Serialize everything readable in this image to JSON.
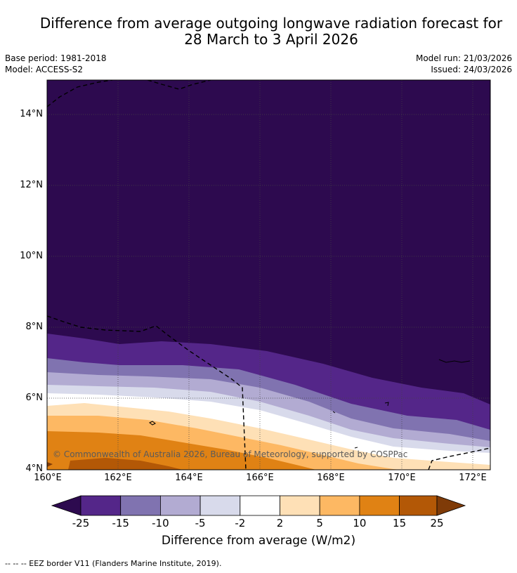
{
  "title_line1": "Difference from average outgoing longwave radiation forecast for",
  "title_line2": "28 March to 3 April 2026",
  "meta_left": {
    "base_period": "Base period: 1981-2018",
    "model": "Model: ACCESS-S2"
  },
  "meta_right": {
    "model_run": "Model run: 21/03/2026",
    "issued": "Issued: 24/03/2026"
  },
  "lat_labels": [
    "14°N",
    "12°N",
    "10°N",
    "8°N",
    "6°N",
    "4°N"
  ],
  "lon_labels": [
    "160°E",
    "162°E",
    "164°E",
    "166°E",
    "168°E",
    "170°E",
    "172°E"
  ],
  "copyright": "© Commonwealth of Australia 2026, Bureau of Meteorology, supported by COSPPac",
  "colorbar": {
    "ticks": [
      "-25",
      "-15",
      "-10",
      "-5",
      "-2",
      "2",
      "5",
      "10",
      "15",
      "25"
    ],
    "colors": [
      "#2d0a4f",
      "#542689",
      "#8073b0",
      "#b2abd2",
      "#d8daeb",
      "#ffffff",
      "#fee0b6",
      "#fdb863",
      "#e08214",
      "#b35806",
      "#7f3b08"
    ],
    "title": "Difference from average (W/m2)"
  },
  "footnote": "--  --  -- EEZ border V11 (Flanders Marine Institute, 2019)."
}
